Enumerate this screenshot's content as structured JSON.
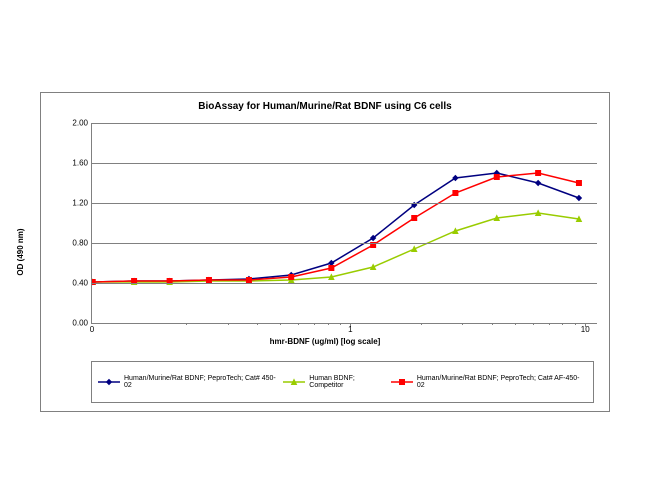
{
  "chart": {
    "type": "line",
    "title": "BioAssay for Human/Murine/Rat BDNF using C6 cells",
    "title_fontsize": 10,
    "background_color": "#ffffff",
    "grid_color": "#808080",
    "xlabel": "hmr-BDNF (ug/ml) [log scale]",
    "ylabel": "OD (490 nm)",
    "axis_label_fontsize": 8,
    "x_scale": "log",
    "xlim_log": [
      -1.1,
      1.05
    ],
    "xticks": [
      0,
      1,
      10
    ],
    "ylim": [
      0,
      2.0
    ],
    "ytick_step": 0.4,
    "yticks": [
      0.0,
      0.4,
      0.8,
      1.2,
      1.6,
      2.0
    ],
    "tick_fontsize": 8,
    "line_width": 1.5,
    "marker_size": 5,
    "series": [
      {
        "name": "Human/Murine/Rat BDNF; PeproTech; Cat# 450-02",
        "color": "#000080",
        "marker": "diamond",
        "x": [
          0.08,
          0.12,
          0.17,
          0.25,
          0.37,
          0.56,
          0.83,
          1.25,
          1.87,
          2.8,
          4.2,
          6.3,
          9.4
        ],
        "y": [
          0.41,
          0.42,
          0.42,
          0.43,
          0.44,
          0.48,
          0.6,
          0.85,
          1.18,
          1.45,
          1.5,
          1.4,
          1.25
        ]
      },
      {
        "name": "Human BDNF; Competitor",
        "color": "#99cc00",
        "marker": "triangle",
        "x": [
          0.08,
          0.12,
          0.17,
          0.25,
          0.37,
          0.56,
          0.83,
          1.25,
          1.87,
          2.8,
          4.2,
          6.3,
          9.4
        ],
        "y": [
          0.41,
          0.41,
          0.41,
          0.42,
          0.42,
          0.43,
          0.46,
          0.56,
          0.74,
          0.92,
          1.05,
          1.1,
          1.04
        ]
      },
      {
        "name": "Human/Murine/Rat BDNF; PeproTech; Cat# AF-450-02",
        "color": "#ff0000",
        "marker": "square",
        "x": [
          0.08,
          0.12,
          0.17,
          0.25,
          0.37,
          0.56,
          0.83,
          1.25,
          1.87,
          2.8,
          4.2,
          6.3,
          9.4
        ],
        "y": [
          0.41,
          0.42,
          0.42,
          0.43,
          0.43,
          0.46,
          0.55,
          0.78,
          1.05,
          1.3,
          1.46,
          1.5,
          1.4
        ]
      }
    ],
    "legend": {
      "position": "bottom",
      "border_color": "#808080",
      "fontsize": 7
    }
  }
}
